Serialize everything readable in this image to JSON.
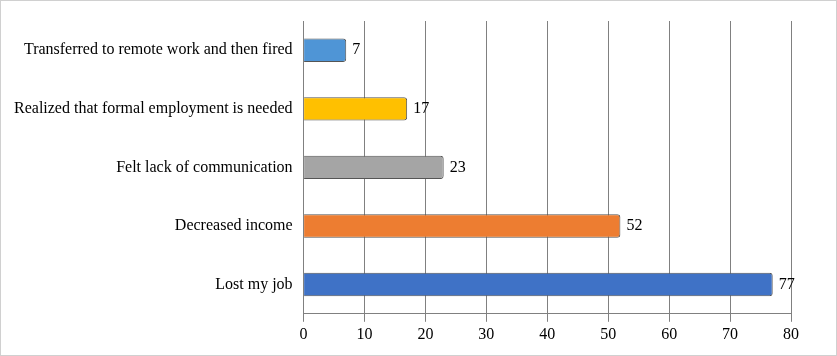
{
  "chart_data": {
    "type": "bar",
    "orientation": "horizontal",
    "categories": [
      "Transferred to remote work and then fired",
      "Realized that formal employment is needed",
      "Felt lack of communication",
      "Decreased income",
      "Lost my job"
    ],
    "values": [
      7,
      17,
      23,
      52,
      77
    ],
    "colors": [
      "#4f95d6",
      "#ffc000",
      "#a5a5a5",
      "#ed7d31",
      "#3f72c6"
    ],
    "xlim": [
      0,
      80
    ],
    "xticks": [
      0,
      10,
      20,
      30,
      40,
      50,
      60,
      70,
      80
    ],
    "grid": true,
    "data_labels": true
  }
}
